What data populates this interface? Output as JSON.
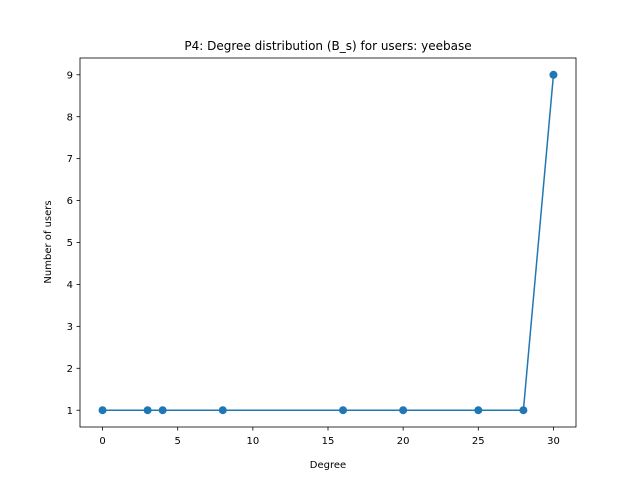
{
  "chart_data": {
    "type": "line",
    "title": "P4: Degree distribution (B_s) for users: yeebase",
    "xlabel": "Degree",
    "ylabel": "Number of users",
    "x": [
      0,
      3,
      4,
      8,
      16,
      20,
      25,
      28,
      30
    ],
    "series": [
      {
        "values": [
          1,
          1,
          1,
          1,
          1,
          1,
          1,
          1,
          9
        ]
      }
    ],
    "xlim": [
      -1.5,
      31.5
    ],
    "ylim": [
      0.6,
      9.4
    ],
    "xticks": [
      0,
      5,
      10,
      15,
      20,
      25,
      30
    ],
    "yticks": [
      1,
      2,
      3,
      4,
      5,
      6,
      7,
      8,
      9
    ],
    "grid": false,
    "marker": "circle",
    "line_color": "#1f77b4"
  }
}
